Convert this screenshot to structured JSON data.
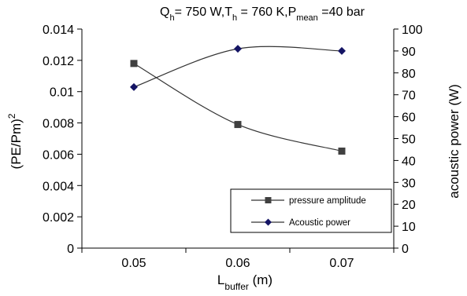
{
  "chart_data": {
    "type": "line",
    "title": {
      "parts": [
        {
          "text": "Q",
          "sub": false
        },
        {
          "text": "h",
          "sub": true
        },
        {
          "text": "= 750 W,T",
          "sub": false
        },
        {
          "text": "h",
          "sub": true
        },
        {
          "text": " = 760 K,P",
          "sub": false
        },
        {
          "text": "mean",
          "sub": true
        },
        {
          "text": " =40 bar",
          "sub": false
        }
      ]
    },
    "xlabel": {
      "main": "L",
      "sub": "buffer",
      "suffix": " (m)"
    },
    "ylabel_left": {
      "main": "(PE/Pm)",
      "sup": "2"
    },
    "ylabel_right": "acoustic power (W)",
    "x": [
      0.05,
      0.06,
      0.07
    ],
    "x_tick_labels": [
      "0.05",
      "0.06",
      "0.07"
    ],
    "xlim": [
      0.045,
      0.075
    ],
    "ylim_left": [
      0,
      0.014
    ],
    "ylim_right": [
      0,
      100
    ],
    "y_left_ticks": [
      0,
      0.002,
      0.004,
      0.006,
      0.008,
      0.01,
      0.012,
      0.014
    ],
    "y_left_tick_labels": [
      "0",
      "0.002",
      "0.004",
      "0.006",
      "0.008",
      "0.01",
      "0.012",
      "0.014"
    ],
    "y_right_ticks": [
      0,
      10,
      20,
      30,
      40,
      50,
      60,
      70,
      80,
      90,
      100
    ],
    "y_right_tick_labels": [
      "0",
      "10",
      "20",
      "30",
      "40",
      "50",
      "60",
      "70",
      "80",
      "90",
      "100"
    ],
    "grid": false,
    "legend_position": "bottom-right",
    "series": [
      {
        "name": "pressure amplitude",
        "axis": "left",
        "values": [
          0.0118,
          0.0079,
          0.0062
        ],
        "marker": "square",
        "marker_color": "#404040",
        "line_color": "#333333"
      },
      {
        "name": "Acoustic power",
        "axis": "right",
        "values": [
          73.5,
          91,
          90
        ],
        "marker": "diamond",
        "marker_color": "#141464",
        "line_color": "#333333"
      }
    ]
  }
}
